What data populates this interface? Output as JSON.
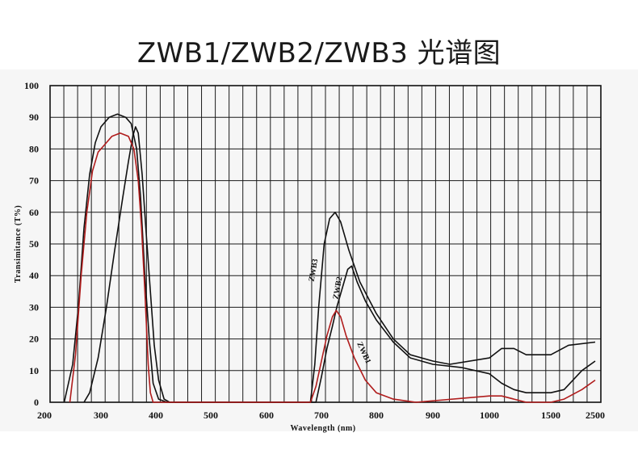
{
  "title": "ZWB1/ZWB2/ZWB3 光谱图",
  "chart_data": {
    "type": "line",
    "title": "ZWB1/ZWB2/ZWB3 光谱图",
    "xlabel": "Wavelength  (nm)",
    "ylabel": "Transimitance  (T%)",
    "ylim": [
      0,
      100
    ],
    "yticks": [
      0,
      10,
      20,
      30,
      40,
      50,
      60,
      70,
      80,
      90,
      100
    ],
    "xticks": [
      200,
      300,
      400,
      500,
      600,
      700,
      800,
      900,
      1000,
      1500,
      2500
    ],
    "grid": true,
    "legend": "inline labels on curves",
    "series": [
      {
        "name": "ZWB3",
        "color": "#111111",
        "points": [
          [
            235,
            0
          ],
          [
            250,
            12
          ],
          [
            260,
            30
          ],
          [
            270,
            55
          ],
          [
            280,
            72
          ],
          [
            290,
            82
          ],
          [
            300,
            87
          ],
          [
            315,
            90
          ],
          [
            330,
            91
          ],
          [
            345,
            90
          ],
          [
            355,
            88
          ],
          [
            365,
            80
          ],
          [
            372,
            65
          ],
          [
            380,
            40
          ],
          [
            388,
            20
          ],
          [
            395,
            6
          ],
          [
            405,
            1
          ],
          [
            420,
            0
          ],
          [
            680,
            0
          ],
          [
            688,
            12
          ],
          [
            695,
            30
          ],
          [
            705,
            50
          ],
          [
            715,
            58
          ],
          [
            725,
            60
          ],
          [
            735,
            57
          ],
          [
            750,
            48
          ],
          [
            770,
            38
          ],
          [
            800,
            28
          ],
          [
            830,
            20
          ],
          [
            860,
            15
          ],
          [
            900,
            13
          ],
          [
            930,
            12
          ],
          [
            1000,
            14
          ],
          [
            1100,
            17
          ],
          [
            1200,
            17
          ],
          [
            1250,
            16
          ],
          [
            1300,
            15
          ],
          [
            1500,
            15
          ],
          [
            1900,
            18
          ],
          [
            2500,
            19
          ]
        ]
      },
      {
        "name": "ZWB2",
        "color": "#111111",
        "points": [
          [
            270,
            0
          ],
          [
            280,
            3
          ],
          [
            295,
            14
          ],
          [
            310,
            30
          ],
          [
            325,
            48
          ],
          [
            340,
            65
          ],
          [
            350,
            76
          ],
          [
            358,
            84
          ],
          [
            363,
            87
          ],
          [
            368,
            85
          ],
          [
            375,
            72
          ],
          [
            383,
            52
          ],
          [
            390,
            35
          ],
          [
            397,
            18
          ],
          [
            405,
            7
          ],
          [
            415,
            1
          ],
          [
            425,
            0
          ],
          [
            690,
            0
          ],
          [
            700,
            8
          ],
          [
            710,
            17
          ],
          [
            720,
            24
          ],
          [
            728,
            30
          ],
          [
            738,
            36
          ],
          [
            748,
            42
          ],
          [
            755,
            43
          ],
          [
            765,
            38
          ],
          [
            780,
            32
          ],
          [
            800,
            26
          ],
          [
            830,
            19
          ],
          [
            860,
            14
          ],
          [
            900,
            12
          ],
          [
            950,
            11
          ],
          [
            1000,
            9
          ],
          [
            1100,
            6
          ],
          [
            1200,
            4
          ],
          [
            1300,
            3
          ],
          [
            1500,
            3
          ],
          [
            1800,
            4
          ],
          [
            2200,
            10
          ],
          [
            2500,
            13
          ]
        ]
      },
      {
        "name": "ZWB1",
        "color": "#b01c1c",
        "points": [
          [
            245,
            0
          ],
          [
            255,
            15
          ],
          [
            265,
            40
          ],
          [
            275,
            60
          ],
          [
            285,
            73
          ],
          [
            295,
            79
          ],
          [
            305,
            81
          ],
          [
            320,
            84
          ],
          [
            335,
            85
          ],
          [
            350,
            84
          ],
          [
            360,
            80
          ],
          [
            368,
            70
          ],
          [
            374,
            55
          ],
          [
            380,
            35
          ],
          [
            386,
            12
          ],
          [
            390,
            3
          ],
          [
            395,
            0
          ],
          [
            680,
            0
          ],
          [
            690,
            5
          ],
          [
            700,
            13
          ],
          [
            710,
            21
          ],
          [
            720,
            27
          ],
          [
            727,
            29
          ],
          [
            735,
            27
          ],
          [
            745,
            21
          ],
          [
            760,
            14
          ],
          [
            780,
            7
          ],
          [
            800,
            3
          ],
          [
            830,
            1
          ],
          [
            870,
            0
          ],
          [
            1000,
            2
          ],
          [
            1100,
            2
          ],
          [
            1200,
            1
          ],
          [
            1300,
            0
          ],
          [
            1500,
            0
          ],
          [
            1800,
            1
          ],
          [
            2200,
            4
          ],
          [
            2500,
            7
          ]
        ]
      }
    ]
  }
}
